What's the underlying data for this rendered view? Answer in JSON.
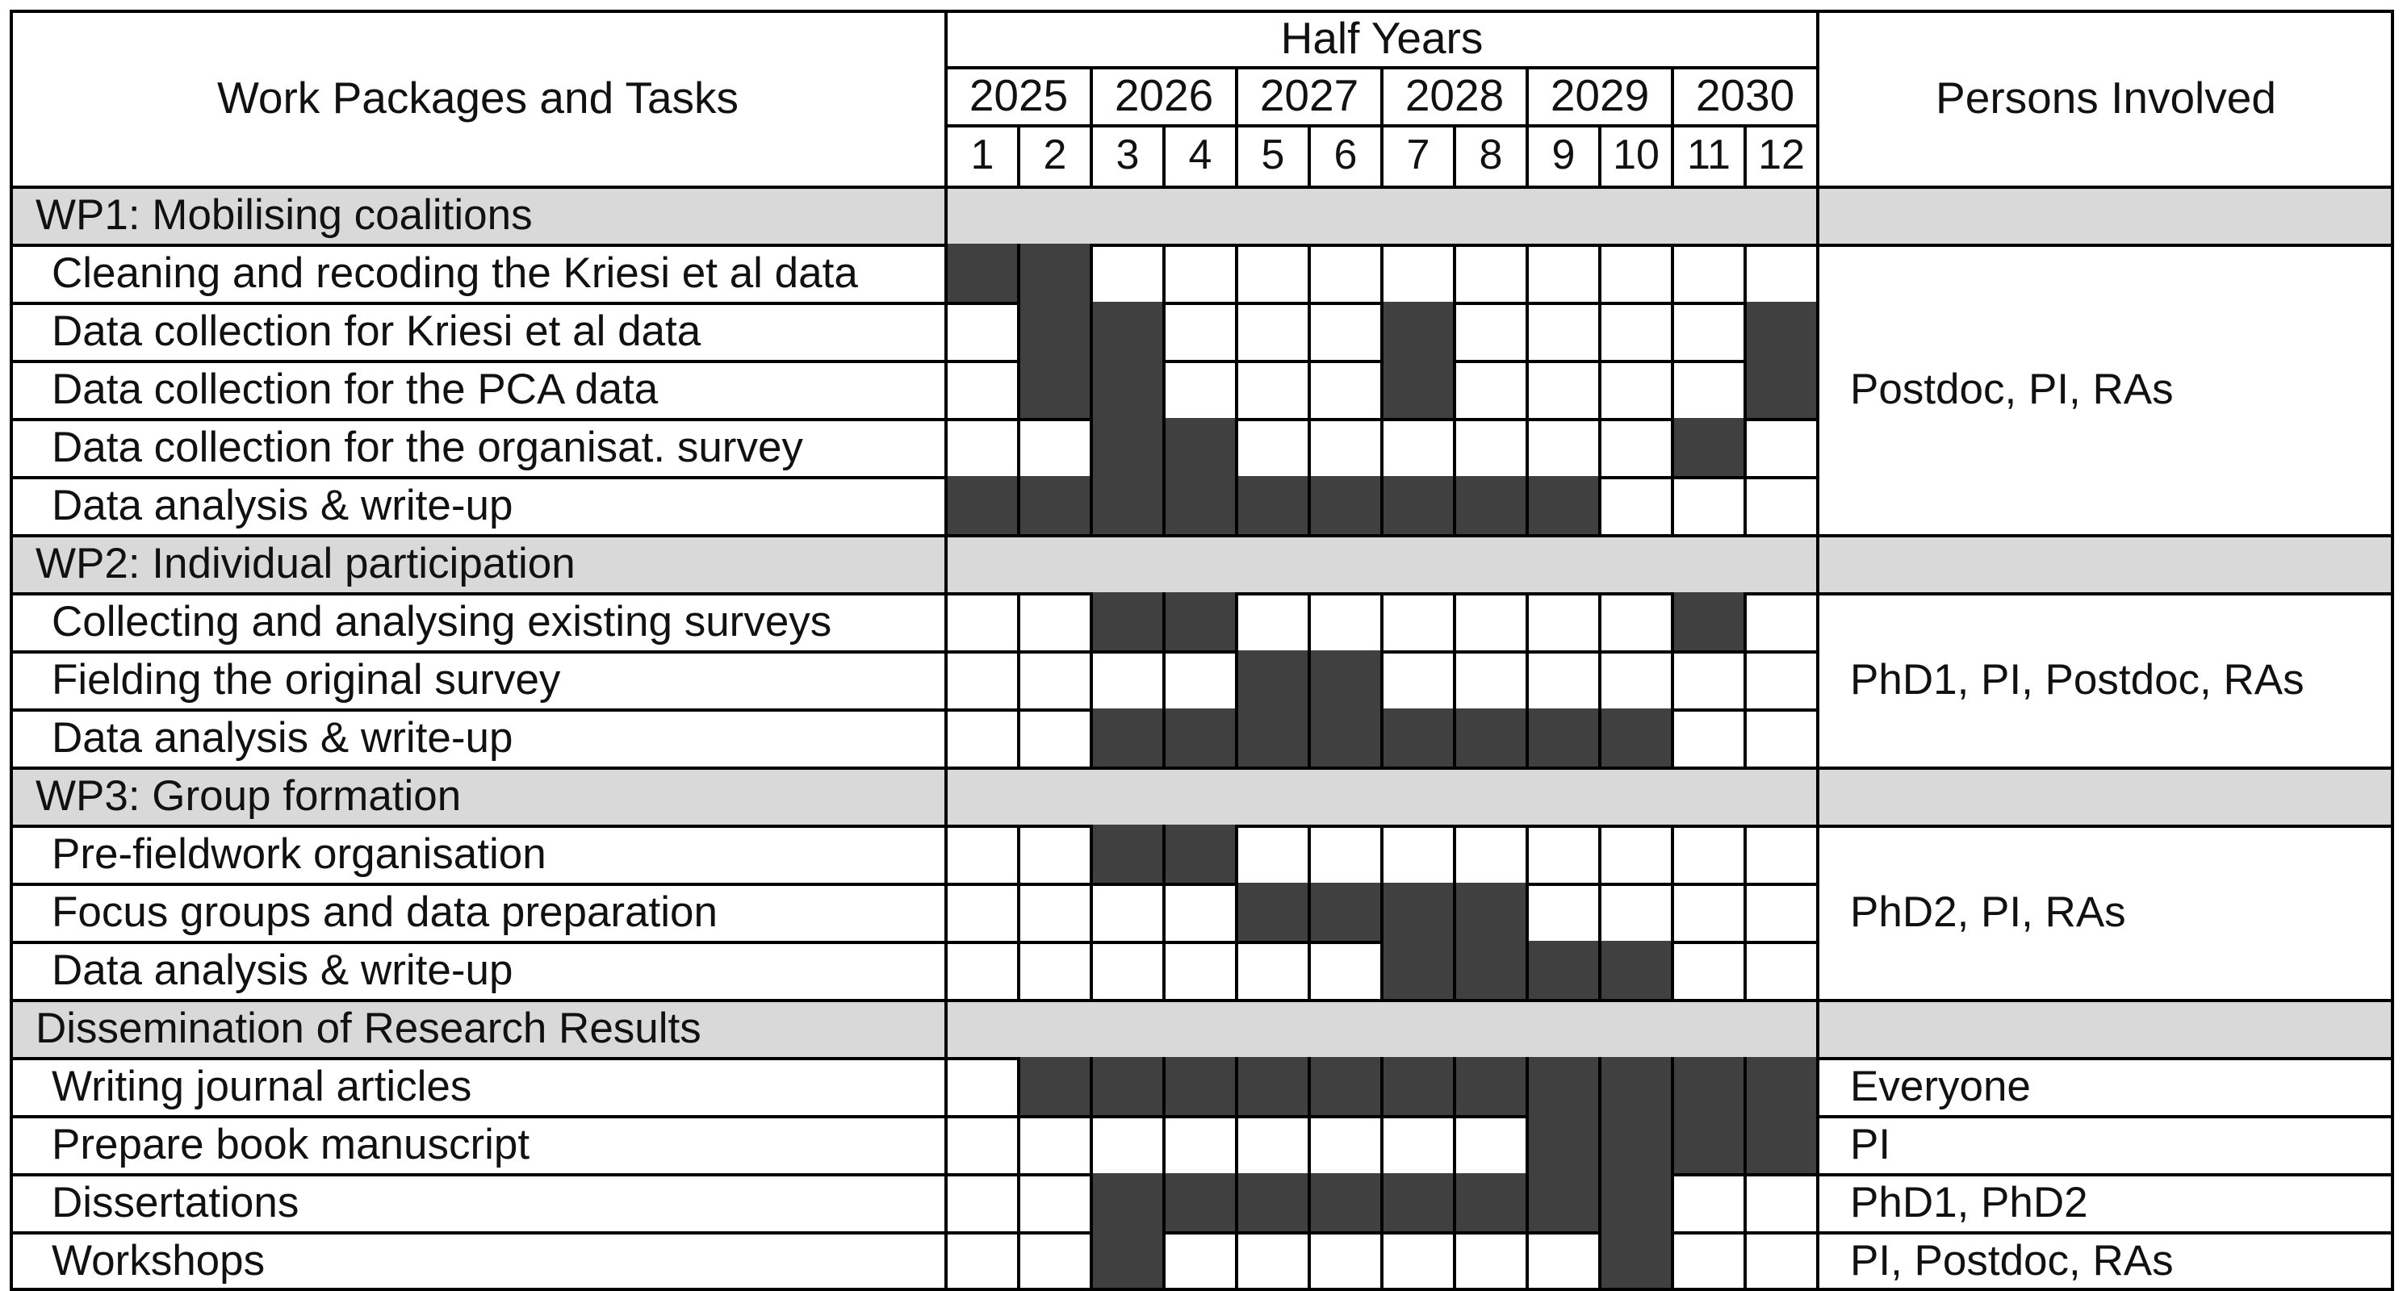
{
  "header": {
    "tasks_col": "Work Packages and Tasks",
    "half_years": "Half Years",
    "persons_col": "Persons Involved",
    "years": [
      "2025",
      "2026",
      "2027",
      "2028",
      "2029",
      "2030"
    ],
    "halves": [
      "1",
      "2",
      "3",
      "4",
      "5",
      "6",
      "7",
      "8",
      "9",
      "10",
      "11",
      "12"
    ]
  },
  "colors": {
    "filled": "#404040",
    "section_bg": "#d9d9d9",
    "grid": "#000000",
    "background": "#ffffff"
  },
  "sections": [
    {
      "title": "WP1: Mobilising coalitions",
      "persons": "Postdoc, PI, RAs",
      "tasks": [
        {
          "name": "Cleaning and recoding the Kriesi et al data",
          "periods": [
            1,
            2
          ]
        },
        {
          "name": "Data collection for Kriesi et al data",
          "periods": [
            2,
            3,
            7,
            12
          ]
        },
        {
          "name": "Data collection for the PCA data",
          "periods": [
            2,
            3,
            7,
            12
          ]
        },
        {
          "name": "Data collection for the organisat. survey",
          "periods": [
            3,
            4,
            11
          ]
        },
        {
          "name": "Data analysis & write-up",
          "periods": [
            1,
            2,
            3,
            4,
            5,
            6,
            7,
            8,
            9
          ]
        }
      ]
    },
    {
      "title": "WP2: Individual participation",
      "persons": "PhD1, PI, Postdoc, RAs",
      "tasks": [
        {
          "name": "Collecting and analysing existing surveys",
          "periods": [
            3,
            4,
            11
          ]
        },
        {
          "name": "Fielding the original survey",
          "periods": [
            5,
            6
          ]
        },
        {
          "name": "Data analysis & write-up",
          "periods": [
            3,
            4,
            5,
            6,
            7,
            8,
            9,
            10
          ]
        }
      ]
    },
    {
      "title": "WP3: Group formation",
      "persons": "PhD2, PI, RAs",
      "tasks": [
        {
          "name": "Pre-fieldwork organisation",
          "periods": [
            3,
            4
          ]
        },
        {
          "name": "Focus groups and data preparation",
          "periods": [
            5,
            6,
            7,
            8
          ]
        },
        {
          "name": "Data analysis & write-up",
          "periods": [
            7,
            8,
            9,
            10
          ]
        }
      ]
    },
    {
      "title": "Dissemination of Research Results",
      "persons": null,
      "tasks": [
        {
          "name": "Writing journal articles",
          "periods": [
            2,
            3,
            4,
            5,
            6,
            7,
            8,
            9,
            10,
            11,
            12
          ],
          "persons": "Everyone"
        },
        {
          "name": "Prepare book manuscript",
          "periods": [
            9,
            10,
            11,
            12
          ],
          "persons": "PI"
        },
        {
          "name": "Dissertations",
          "periods": [
            3,
            4,
            5,
            6,
            7,
            8,
            9,
            10
          ],
          "persons": "PhD1, PhD2"
        },
        {
          "name": "Workshops",
          "periods": [
            3,
            10
          ],
          "persons": "PI, Postdoc, RAs"
        }
      ]
    }
  ]
}
